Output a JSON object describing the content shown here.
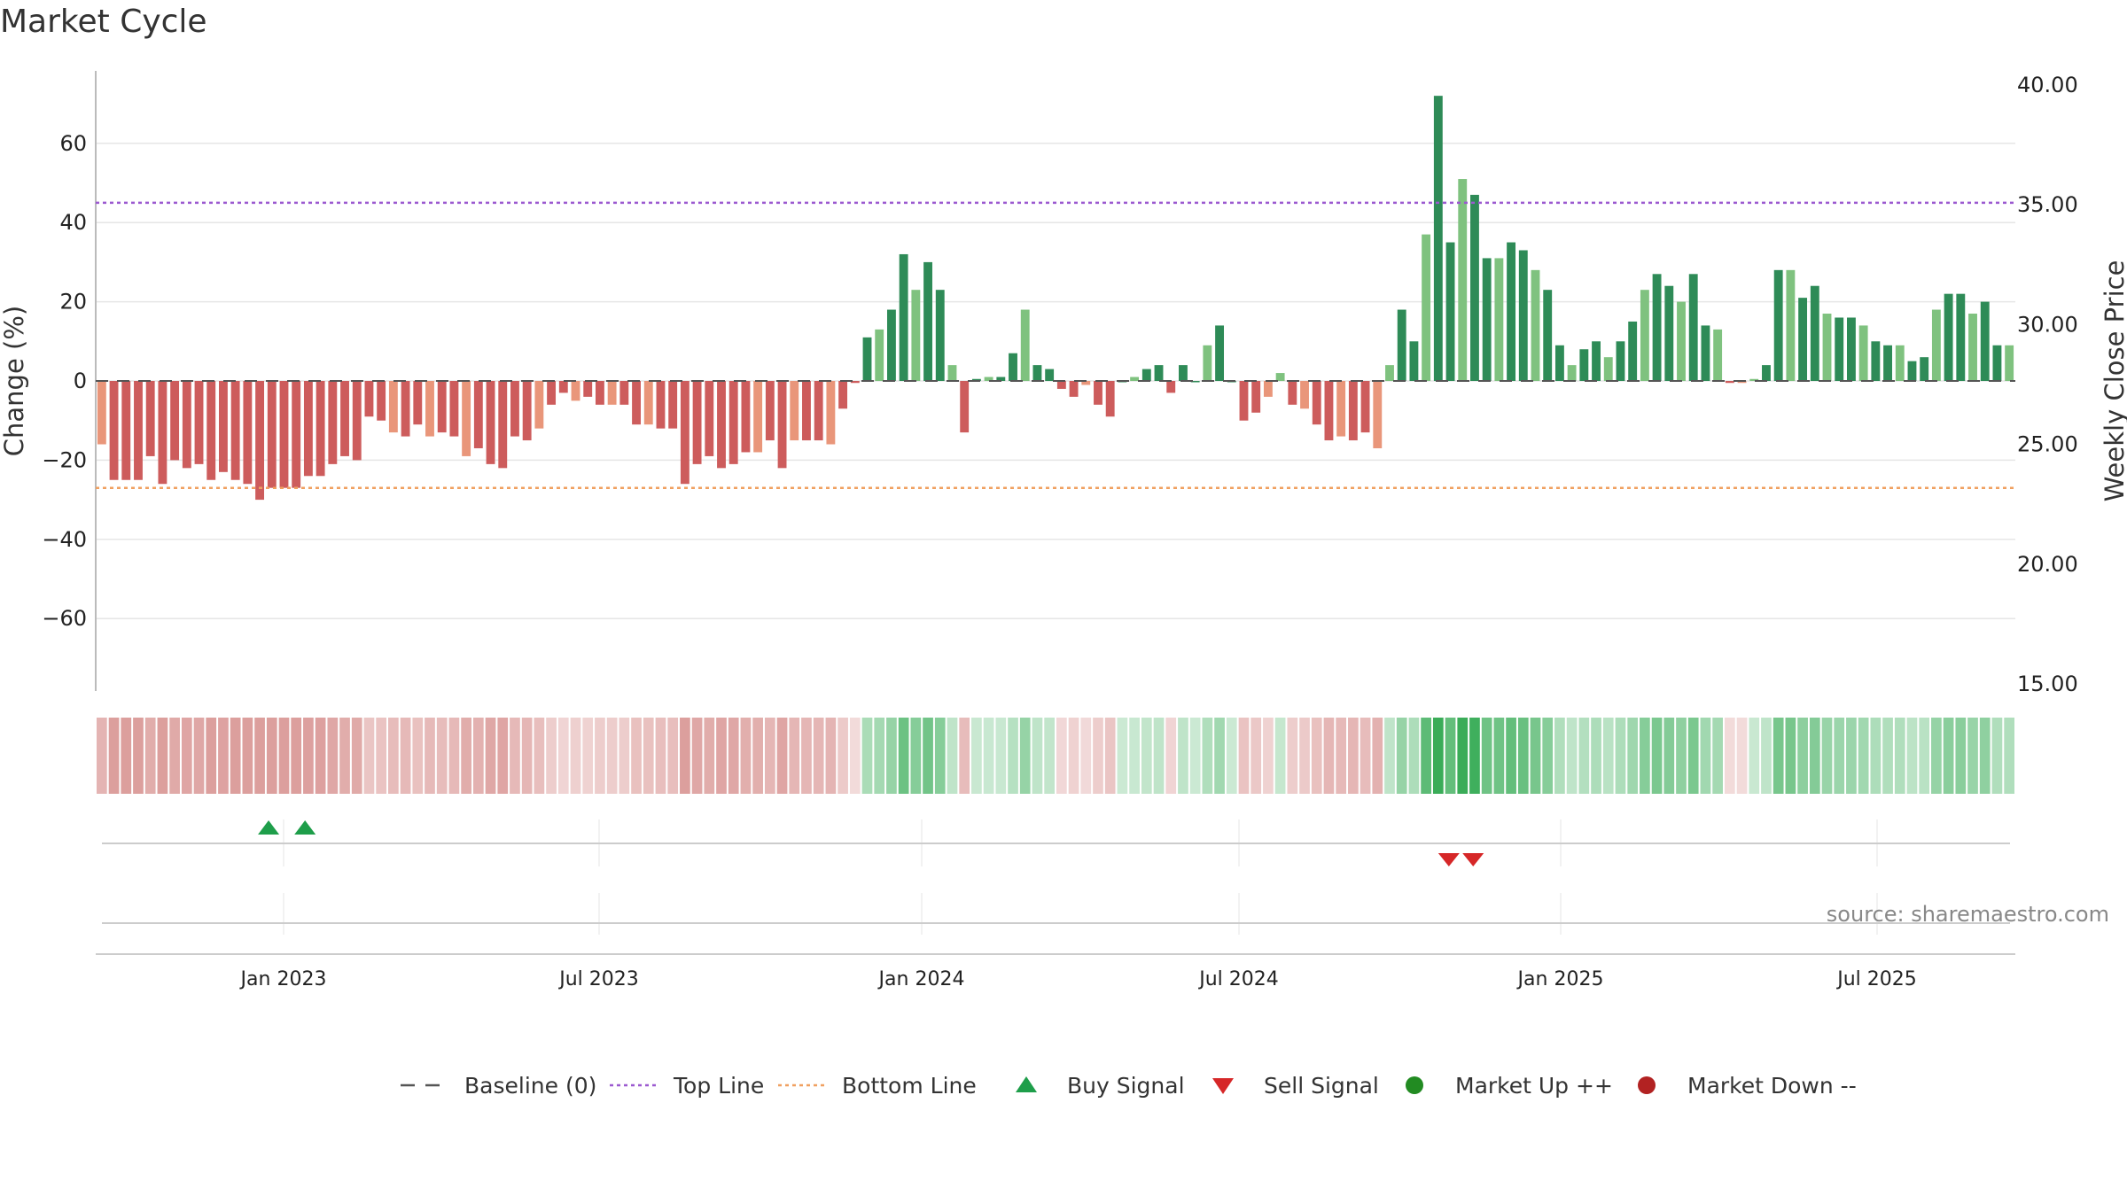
{
  "chart_data": {
    "type": "bar",
    "title": "Market Cycle",
    "ylabel_left": "Change (%)",
    "ylabel_right": "Weekly Close Price",
    "left_ylim": [
      -78,
      78
    ],
    "right_ylim": [
      15,
      40
    ],
    "left_ticks": [
      "60",
      "40",
      "20",
      "0",
      "−20",
      "−40",
      "−60"
    ],
    "right_ticks": [
      "40.00",
      "35.00",
      "30.00",
      "25.00",
      "20.00",
      "15.00"
    ],
    "x_ticks": [
      "Jan 2023",
      "Jul 2023",
      "Jan 2024",
      "Jul 2024",
      "Jan 2025",
      "Jul 2025"
    ],
    "top_line": 45,
    "bottom_line": -27,
    "baseline": 0,
    "values": [
      -16,
      -25,
      -25,
      -25,
      -19,
      -26,
      -20,
      -22,
      -21,
      -25,
      -23,
      -25,
      -26,
      -30,
      -27,
      -27,
      -27,
      -24,
      -24,
      -21,
      -19,
      -20,
      -9,
      -10,
      -13,
      -14,
      -11,
      -14,
      -13,
      -14,
      -19,
      -17,
      -21,
      -22,
      -14,
      -15,
      -12,
      -6,
      -3,
      -5,
      -4,
      -6,
      -6,
      -6,
      -11,
      -11,
      -12,
      -12,
      -26,
      -21,
      -19,
      -22,
      -21,
      -18,
      -18,
      -15,
      -22,
      -15,
      -15,
      -15,
      -16,
      -7,
      -0.5,
      11,
      13,
      18,
      32,
      23,
      30,
      23,
      4,
      -13,
      0.5,
      1,
      1,
      7,
      18,
      4,
      3,
      -2,
      -4,
      -1,
      -6,
      -9,
      0,
      1,
      3,
      4,
      -3,
      4,
      0,
      9,
      14,
      0,
      -10,
      -8,
      -4,
      2,
      -6,
      -7,
      -11,
      -15,
      -14,
      -15,
      -13,
      -17,
      4,
      18,
      10,
      37,
      72,
      35,
      51,
      47,
      31,
      31,
      35,
      33,
      28,
      23,
      9,
      4,
      8,
      10,
      6,
      10,
      15,
      23,
      27,
      24,
      20,
      27,
      14,
      13,
      -0.5,
      -0.5,
      0.5,
      4,
      28,
      28,
      21,
      24,
      17,
      16,
      16,
      14,
      10,
      9,
      9,
      5,
      6,
      18,
      22,
      22,
      17,
      20,
      9,
      9
    ],
    "buy_signals": [
      13,
      16
    ],
    "sell_signals": [
      110,
      112
    ],
    "source": "source: sharemaestro.com",
    "legend": [
      {
        "label": "Baseline (0)",
        "marker": "dash",
        "color": "#555555"
      },
      {
        "label": "Top Line",
        "marker": "dotted",
        "color": "#9b59d0"
      },
      {
        "label": "Bottom Line",
        "marker": "dotted",
        "color": "#f0a060"
      },
      {
        "label": "Buy Signal",
        "marker": "triangle-up",
        "color": "#1e9e4a"
      },
      {
        "label": "Sell Signal",
        "marker": "triangle-down",
        "color": "#d62728"
      },
      {
        "label": "Market Up ++",
        "marker": "circle",
        "color": "#228b22"
      },
      {
        "label": "Market Down --",
        "marker": "circle",
        "color": "#b22222"
      }
    ],
    "colors": {
      "strong_up": "#2e8b57",
      "weak_up": "#7fc27f",
      "strong_down": "#cd5c5c",
      "weak_down": "#e9967a",
      "top_line": "#9b59d0",
      "bottom_line": "#f0a060"
    },
    "grid": true,
    "legend_position": "bottom"
  }
}
